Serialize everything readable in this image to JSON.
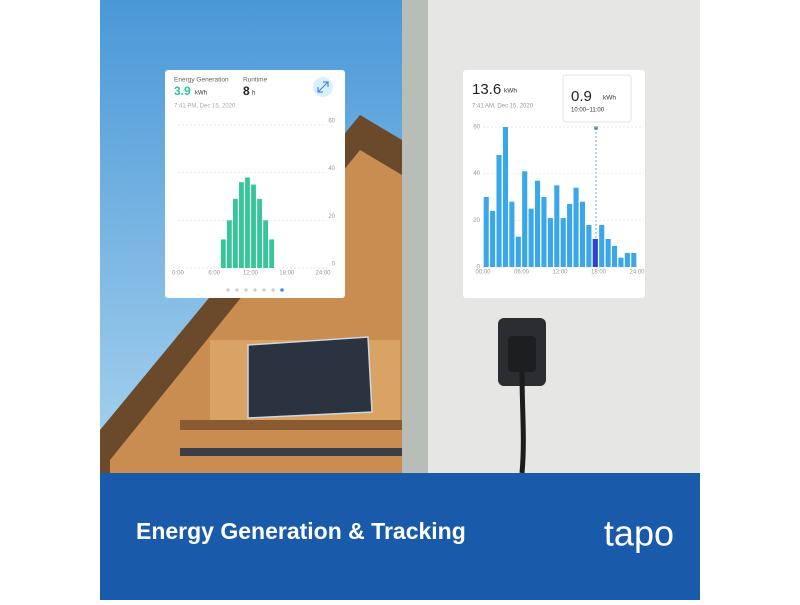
{
  "banner": {
    "title": "Energy Generation & Tracking",
    "brand": "tapo"
  },
  "left_card": {
    "metric_label": "Energy Generation",
    "metric_value": 3.9,
    "metric_unit": "kWh",
    "runtime_label": "Runtime",
    "runtime_value": 8,
    "runtime_unit": "h",
    "timestamp": "7:41 PM, Dec 15, 2020"
  },
  "right_card": {
    "metric_value": 13.6,
    "metric_unit": "kWh",
    "timestamp": "7:41 AM, Dec 15, 2020",
    "tooltip_value": 0.9,
    "tooltip_unit": "kWh",
    "tooltip_range": "10:00~11:00"
  },
  "chart_data": [
    {
      "type": "bar",
      "x": [
        7,
        8,
        9,
        10,
        11,
        12,
        13,
        14,
        15
      ],
      "values": [
        12,
        20,
        29,
        36,
        38,
        35,
        29,
        20,
        12
      ],
      "color": "#34c79a",
      "xlim": [
        0,
        24
      ],
      "xticks": [
        {
          "value": 0,
          "label": "0:00"
        },
        {
          "value": 6,
          "label": "6:00"
        },
        {
          "value": 12,
          "label": "12:00"
        },
        {
          "value": 18,
          "label": "18:00"
        },
        {
          "value": 24,
          "label": "24:00"
        }
      ],
      "ylim": [
        0,
        60
      ],
      "yticks": [
        0,
        20,
        40,
        60
      ],
      "y_axis_side": "right",
      "grid": true
    },
    {
      "type": "bar",
      "x": [
        0,
        1,
        2,
        3,
        4,
        5,
        6,
        7,
        8,
        9,
        10,
        11,
        12,
        13,
        14,
        15,
        16,
        17,
        18,
        19,
        20,
        21,
        22,
        23
      ],
      "values": [
        30,
        24,
        48,
        60,
        28,
        13,
        41,
        25,
        37,
        30,
        21,
        35,
        21,
        27,
        34,
        28,
        18,
        12,
        18,
        12,
        9,
        4,
        6,
        6
      ],
      "colors": [
        "#3aa8e8",
        "#3aa8e8",
        "#3aa8e8",
        "#3aa8e8",
        "#3aa8e8",
        "#3aa8e8",
        "#3aa8e8",
        "#3aa8e8",
        "#3aa8e8",
        "#3aa8e8",
        "#3aa8e8",
        "#3aa8e8",
        "#3aa8e8",
        "#3aa8e8",
        "#3aa8e8",
        "#3aa8e8",
        "#3aa8e8",
        "#2f3fd0",
        "#3aa8e8",
        "#3aa8e8",
        "#3aa8e8",
        "#3aa8e8",
        "#3aa8e8",
        "#3aa8e8"
      ],
      "xlim": [
        0,
        24
      ],
      "xticks": [
        {
          "value": 0,
          "label": "00:00"
        },
        {
          "value": 6,
          "label": "06:00"
        },
        {
          "value": 12,
          "label": "12:00"
        },
        {
          "value": 18,
          "label": "18:00"
        },
        {
          "value": 24,
          "label": "24:00"
        }
      ],
      "ylim": [
        0,
        60
      ],
      "yticks": [
        0,
        20,
        40,
        60
      ],
      "y_axis_side": "left",
      "grid": true
    }
  ]
}
